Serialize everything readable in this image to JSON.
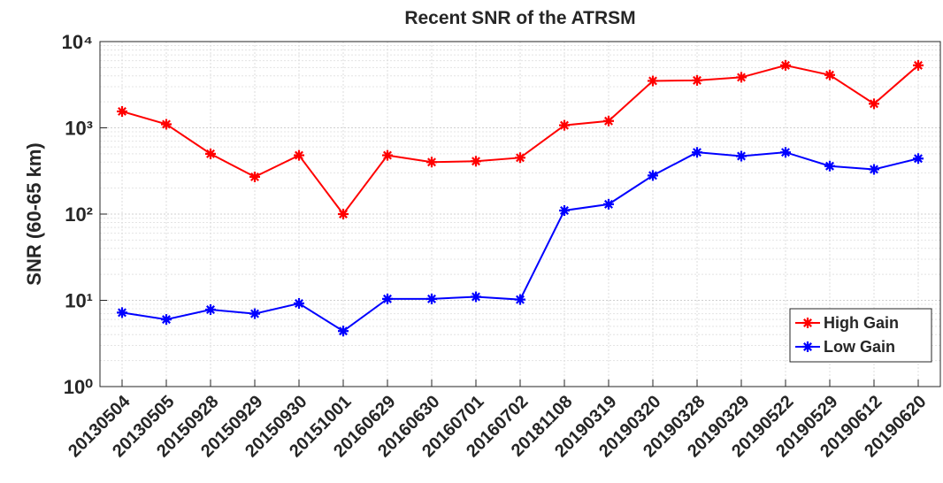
{
  "chart_data": {
    "type": "line",
    "title": "Recent SNR of the ATRSM",
    "y_label": "SNR (60-65 km)",
    "categories": [
      "20130504",
      "20130505",
      "20150928",
      "20150929",
      "20150930",
      "20151001",
      "20160629",
      "20160630",
      "20160701",
      "20160702",
      "20181108",
      "20190319",
      "20190320",
      "20190328",
      "20190329",
      "20190522",
      "20190529",
      "20190612",
      "20190620"
    ],
    "series": [
      {
        "name": "High Gain",
        "color": "#ff0000",
        "values": [
          1550,
          1100,
          500,
          270,
          480,
          100,
          480,
          400,
          410,
          450,
          1070,
          1200,
          3500,
          3550,
          3850,
          5300,
          4100,
          1900,
          5300
        ]
      },
      {
        "name": "Low Gain",
        "color": "#0000ff",
        "values": [
          7.2,
          6.0,
          7.8,
          7.0,
          9.2,
          4.4,
          10.4,
          10.4,
          11,
          10.2,
          110,
          130,
          280,
          520,
          470,
          520,
          360,
          330,
          440
        ]
      }
    ],
    "log_y": true,
    "ylim": [
      1,
      10000
    ],
    "yticks": [
      {
        "value": 1,
        "label": "10⁰"
      },
      {
        "value": 10,
        "label": "10¹"
      },
      {
        "value": 100,
        "label": "10²"
      },
      {
        "value": 1000,
        "label": "10³"
      },
      {
        "value": 10000,
        "label": "10⁴"
      }
    ],
    "grid": true,
    "legend": "lower right"
  }
}
